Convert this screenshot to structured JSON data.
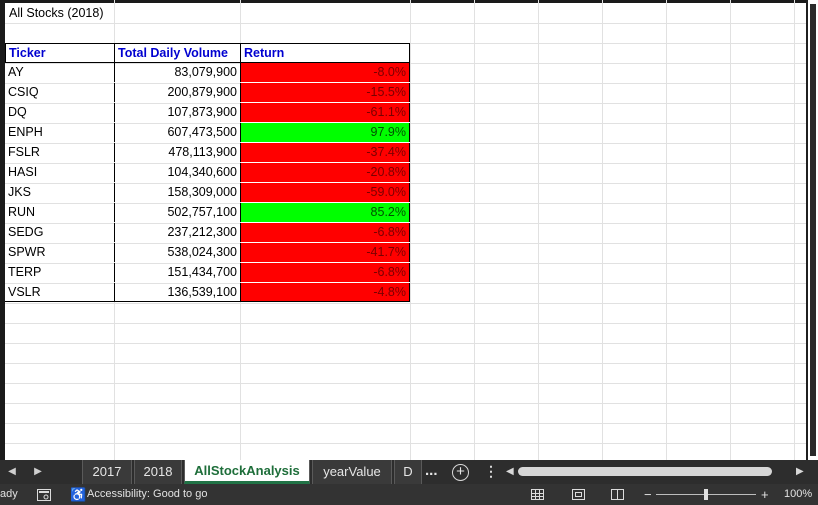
{
  "sheet": {
    "title": "All Stocks (2018)",
    "headers": [
      "Ticker",
      "Total Daily Volume",
      "Return"
    ],
    "rows": [
      {
        "ticker": "AY",
        "volume": "83,079,900",
        "return": "-8.0%",
        "status": "negative"
      },
      {
        "ticker": "CSIQ",
        "volume": "200,879,900",
        "return": "-15.5%",
        "status": "negative"
      },
      {
        "ticker": "DQ",
        "volume": "107,873,900",
        "return": "-61.1%",
        "status": "negative"
      },
      {
        "ticker": "ENPH",
        "volume": "607,473,500",
        "return": "97.9%",
        "status": "positive"
      },
      {
        "ticker": "FSLR",
        "volume": "478,113,900",
        "return": "-37.4%",
        "status": "negative"
      },
      {
        "ticker": "HASI",
        "volume": "104,340,600",
        "return": "-20.8%",
        "status": "negative"
      },
      {
        "ticker": "JKS",
        "volume": "158,309,000",
        "return": "-59.0%",
        "status": "negative"
      },
      {
        "ticker": "RUN",
        "volume": "502,757,100",
        "return": "85.2%",
        "status": "positive"
      },
      {
        "ticker": "SEDG",
        "volume": "237,212,300",
        "return": "-6.8%",
        "status": "negative"
      },
      {
        "ticker": "SPWR",
        "volume": "538,024,300",
        "return": "-41.7%",
        "status": "negative"
      },
      {
        "ticker": "TERP",
        "volume": "151,434,700",
        "return": "-6.8%",
        "status": "negative"
      },
      {
        "ticker": "VSLR",
        "volume": "136,539,100",
        "return": "-4.8%",
        "status": "negative"
      }
    ],
    "colors": {
      "negative_fill": "#ff0000",
      "positive_fill": "#00ff00",
      "header_text": "#0000d0"
    }
  },
  "tabs": {
    "items": [
      "2017",
      "2018",
      "AllStockAnalysis",
      "yearValue",
      "D"
    ],
    "active": "AllStockAnalysis",
    "ellipsis": "...",
    "add_icon": "plus-circle-icon",
    "more_label": "⋮"
  },
  "status": {
    "mode": "ady",
    "accessibility": "Accessibility: Good to go",
    "zoom": "100%",
    "zoom_minus": "−",
    "zoom_plus": "+"
  }
}
